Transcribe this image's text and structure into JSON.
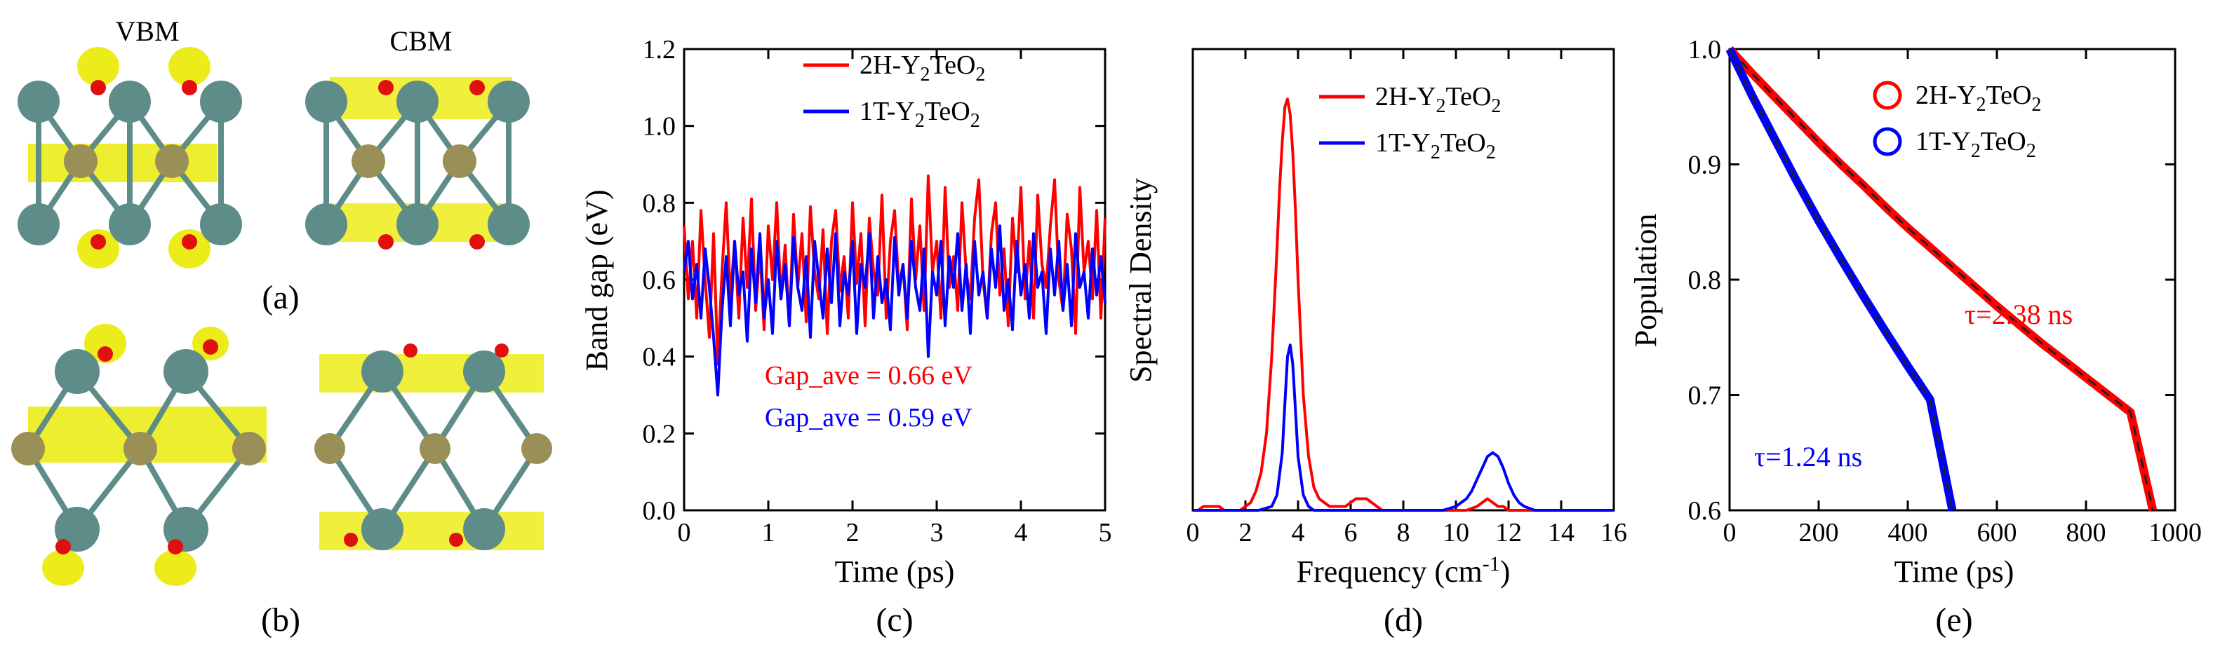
{
  "structures": {
    "vbm_label": "VBM",
    "cbm_label": "CBM",
    "label_a": "(a)",
    "label_b": "(b)"
  },
  "colors": {
    "red": "#ff0000",
    "blue": "#0000ff",
    "yellow": "#ecec1a",
    "atom_y": "#5e8c89",
    "atom_te": "#9a8f57",
    "atom_o": "#e01010"
  },
  "chart_data": [
    {
      "id": "c",
      "type": "line",
      "panel_label": "(c)",
      "xlabel": "Time (ps)",
      "ylabel": "Band gap (eV)",
      "xlim": [
        0,
        5
      ],
      "ylim": [
        0,
        1.2
      ],
      "xticks": [
        "0",
        "1",
        "2",
        "3",
        "4",
        "5"
      ],
      "yticks": [
        "0.0",
        "0.2",
        "0.4",
        "0.6",
        "0.8",
        "1.0",
        "1.2"
      ],
      "legend_position": "top-right",
      "series": [
        {
          "name_main": "2H-Y",
          "name_sub": "2",
          "name_tail": "TeO",
          "name_sub2": "2",
          "color": "#ff0000",
          "x": [
            0.0,
            0.05,
            0.1,
            0.15,
            0.2,
            0.25,
            0.3,
            0.35,
            0.4,
            0.45,
            0.5,
            0.55,
            0.6,
            0.65,
            0.7,
            0.75,
            0.8,
            0.85,
            0.9,
            0.95,
            1.0,
            1.05,
            1.1,
            1.15,
            1.2,
            1.25,
            1.3,
            1.35,
            1.4,
            1.45,
            1.5,
            1.55,
            1.6,
            1.65,
            1.7,
            1.75,
            1.8,
            1.85,
            1.9,
            1.95,
            2.0,
            2.05,
            2.1,
            2.15,
            2.2,
            2.25,
            2.3,
            2.35,
            2.4,
            2.45,
            2.5,
            2.55,
            2.6,
            2.65,
            2.7,
            2.75,
            2.8,
            2.85,
            2.9,
            2.95,
            3.0,
            3.05,
            3.1,
            3.15,
            3.2,
            3.25,
            3.3,
            3.35,
            3.4,
            3.45,
            3.5,
            3.55,
            3.6,
            3.65,
            3.7,
            3.75,
            3.8,
            3.85,
            3.9,
            3.95,
            4.0,
            4.05,
            4.1,
            4.15,
            4.2,
            4.25,
            4.3,
            4.35,
            4.4,
            4.45,
            4.5,
            4.55,
            4.6,
            4.65,
            4.7,
            4.75,
            4.8,
            4.85,
            4.9,
            4.95,
            5.0
          ],
          "values": [
            0.74,
            0.55,
            0.7,
            0.5,
            0.78,
            0.6,
            0.45,
            0.72,
            0.38,
            0.62,
            0.8,
            0.55,
            0.7,
            0.5,
            0.76,
            0.58,
            0.81,
            0.52,
            0.68,
            0.47,
            0.74,
            0.6,
            0.8,
            0.55,
            0.69,
            0.48,
            0.77,
            0.58,
            0.72,
            0.49,
            0.79,
            0.62,
            0.55,
            0.73,
            0.46,
            0.7,
            0.78,
            0.57,
            0.66,
            0.5,
            0.8,
            0.59,
            0.72,
            0.48,
            0.76,
            0.62,
            0.56,
            0.82,
            0.5,
            0.7,
            0.78,
            0.58,
            0.64,
            0.47,
            0.81,
            0.6,
            0.74,
            0.52,
            0.87,
            0.62,
            0.7,
            0.5,
            0.84,
            0.58,
            0.66,
            0.52,
            0.8,
            0.62,
            0.55,
            0.76,
            0.86,
            0.6,
            0.5,
            0.72,
            0.8,
            0.56,
            0.68,
            0.48,
            0.76,
            0.62,
            0.84,
            0.55,
            0.7,
            0.5,
            0.82,
            0.64,
            0.58,
            0.74,
            0.86,
            0.6,
            0.52,
            0.77,
            0.68,
            0.46,
            0.84,
            0.62,
            0.7,
            0.55,
            0.78,
            0.5,
            0.76
          ]
        },
        {
          "name_main": "1T-Y",
          "name_sub": "2",
          "name_tail": "TeO",
          "name_sub2": "2",
          "color": "#0000ff",
          "x": [
            0.0,
            0.05,
            0.1,
            0.15,
            0.2,
            0.25,
            0.3,
            0.35,
            0.4,
            0.45,
            0.5,
            0.55,
            0.6,
            0.65,
            0.7,
            0.75,
            0.8,
            0.85,
            0.9,
            0.95,
            1.0,
            1.05,
            1.1,
            1.15,
            1.2,
            1.25,
            1.3,
            1.35,
            1.4,
            1.45,
            1.5,
            1.55,
            1.6,
            1.65,
            1.7,
            1.75,
            1.8,
            1.85,
            1.9,
            1.95,
            2.0,
            2.05,
            2.1,
            2.15,
            2.2,
            2.25,
            2.3,
            2.35,
            2.4,
            2.45,
            2.5,
            2.55,
            2.6,
            2.65,
            2.7,
            2.75,
            2.8,
            2.85,
            2.9,
            2.95,
            3.0,
            3.05,
            3.1,
            3.15,
            3.2,
            3.25,
            3.3,
            3.35,
            3.4,
            3.45,
            3.5,
            3.55,
            3.6,
            3.65,
            3.7,
            3.75,
            3.8,
            3.85,
            3.9,
            3.95,
            4.0,
            4.05,
            4.1,
            4.15,
            4.2,
            4.25,
            4.3,
            4.35,
            4.4,
            4.45,
            4.5,
            4.55,
            4.6,
            4.65,
            4.7,
            4.75,
            4.8,
            4.85,
            4.9,
            4.95,
            5.0
          ],
          "values": [
            0.62,
            0.7,
            0.55,
            0.64,
            0.5,
            0.68,
            0.58,
            0.45,
            0.3,
            0.52,
            0.66,
            0.48,
            0.7,
            0.56,
            0.62,
            0.44,
            0.68,
            0.54,
            0.72,
            0.5,
            0.6,
            0.46,
            0.7,
            0.55,
            0.64,
            0.48,
            0.71,
            0.58,
            0.52,
            0.66,
            0.45,
            0.7,
            0.6,
            0.5,
            0.68,
            0.54,
            0.72,
            0.48,
            0.62,
            0.56,
            0.7,
            0.46,
            0.64,
            0.58,
            0.72,
            0.5,
            0.66,
            0.54,
            0.6,
            0.47,
            0.71,
            0.56,
            0.64,
            0.5,
            0.7,
            0.58,
            0.52,
            0.68,
            0.4,
            0.62,
            0.56,
            0.7,
            0.48,
            0.66,
            0.58,
            0.72,
            0.52,
            0.64,
            0.46,
            0.7,
            0.56,
            0.62,
            0.5,
            0.68,
            0.58,
            0.74,
            0.52,
            0.6,
            0.47,
            0.7,
            0.56,
            0.64,
            0.5,
            0.72,
            0.58,
            0.62,
            0.46,
            0.68,
            0.56,
            0.7,
            0.52,
            0.64,
            0.48,
            0.72,
            0.58,
            0.62,
            0.5,
            0.68,
            0.56,
            0.66,
            0.54
          ]
        }
      ],
      "annotations": [
        {
          "text": "Gap_ave = 0.66 eV",
          "color": "#ff0000"
        },
        {
          "text": "Gap_ave = 0.59 eV",
          "color": "#0000ff"
        }
      ]
    },
    {
      "id": "d",
      "type": "line",
      "panel_label": "(d)",
      "xlabel_main": "Frequency (cm",
      "xlabel_sup": "-1",
      "xlabel_tail": ")",
      "ylabel": "Spectral Density",
      "xlim": [
        0,
        16
      ],
      "ylim": [
        0,
        1.2
      ],
      "xticks": [
        "0",
        "2",
        "4",
        "6",
        "8",
        "10",
        "12",
        "14",
        "16"
      ],
      "legend_position": "top-right",
      "series": [
        {
          "name_main": "2H-Y",
          "name_sub": "2",
          "name_tail": "TeO",
          "name_sub2": "2",
          "color": "#ff0000",
          "x": [
            0.0,
            0.2,
            0.4,
            0.6,
            0.8,
            1.0,
            1.2,
            1.4,
            1.6,
            1.8,
            2.0,
            2.2,
            2.4,
            2.6,
            2.8,
            3.0,
            3.2,
            3.3,
            3.4,
            3.5,
            3.6,
            3.7,
            3.8,
            3.9,
            4.0,
            4.1,
            4.2,
            4.4,
            4.6,
            4.8,
            5.0,
            5.2,
            5.4,
            5.6,
            5.8,
            6.0,
            6.2,
            6.4,
            6.6,
            6.8,
            7.0,
            7.2,
            7.4,
            7.6,
            7.8,
            8.0,
            8.5,
            9.0,
            9.5,
            10.0,
            10.4,
            10.8,
            11.0,
            11.2,
            11.4,
            11.6,
            11.8,
            12.0,
            12.4,
            12.8,
            13.2,
            14.0,
            15.0,
            16.0
          ],
          "values": [
            0.0,
            0.0,
            0.01,
            0.01,
            0.01,
            0.01,
            0.0,
            0.0,
            0.0,
            0.0,
            0.01,
            0.02,
            0.05,
            0.1,
            0.2,
            0.4,
            0.68,
            0.84,
            0.96,
            1.05,
            1.07,
            1.03,
            0.93,
            0.78,
            0.6,
            0.45,
            0.3,
            0.14,
            0.06,
            0.03,
            0.02,
            0.01,
            0.01,
            0.01,
            0.01,
            0.02,
            0.03,
            0.03,
            0.03,
            0.02,
            0.01,
            0.0,
            0.0,
            0.0,
            0.0,
            0.0,
            0.0,
            0.0,
            0.0,
            0.0,
            0.0,
            0.01,
            0.02,
            0.03,
            0.02,
            0.01,
            0.01,
            0.0,
            0.0,
            0.0,
            0.0,
            0.0,
            0.0,
            0.0
          ]
        },
        {
          "name_main": "1T-Y",
          "name_sub": "2",
          "name_tail": "TeO",
          "name_sub2": "2",
          "color": "#0000ff",
          "x": [
            0.0,
            0.5,
            1.0,
            1.5,
            2.0,
            2.5,
            3.0,
            3.2,
            3.4,
            3.5,
            3.6,
            3.7,
            3.8,
            3.9,
            4.0,
            4.2,
            4.4,
            4.6,
            5.0,
            6.0,
            7.0,
            8.0,
            9.0,
            9.5,
            10.0,
            10.4,
            10.6,
            10.8,
            11.0,
            11.2,
            11.4,
            11.6,
            11.8,
            12.0,
            12.2,
            12.4,
            12.6,
            13.0,
            13.5,
            14.0,
            15.0,
            16.0
          ],
          "values": [
            0.0,
            0.0,
            0.0,
            0.0,
            0.0,
            0.0,
            0.01,
            0.04,
            0.15,
            0.28,
            0.4,
            0.43,
            0.38,
            0.26,
            0.14,
            0.04,
            0.01,
            0.0,
            0.0,
            0.0,
            0.0,
            0.0,
            0.0,
            0.0,
            0.01,
            0.03,
            0.05,
            0.08,
            0.11,
            0.14,
            0.15,
            0.14,
            0.11,
            0.07,
            0.04,
            0.02,
            0.01,
            0.0,
            0.0,
            0.0,
            0.0,
            0.0
          ]
        }
      ]
    },
    {
      "id": "e",
      "type": "line",
      "panel_label": "(e)",
      "xlabel": "Time (ps)",
      "ylabel": "Population",
      "xlim": [
        0,
        1000
      ],
      "ylim": [
        0.6,
        1.0
      ],
      "xticks": [
        "0",
        "200",
        "400",
        "600",
        "800",
        "1000"
      ],
      "yticks": [
        "0.6",
        "0.7",
        "0.8",
        "0.9",
        "1.0"
      ],
      "legend_position": "top-right",
      "series": [
        {
          "name_main": "2H-Y",
          "name_sub": "2",
          "name_tail": "TeO",
          "name_sub2": "2",
          "color": "#ff0000",
          "x": [
            0,
            50,
            100,
            150,
            200,
            250,
            300,
            350,
            400,
            450,
            500,
            550,
            600,
            650,
            700,
            750,
            800,
            850,
            900,
            950
          ],
          "values": [
            1.0,
            0.979,
            0.959,
            0.939,
            0.919,
            0.9,
            0.882,
            0.863,
            0.845,
            0.828,
            0.811,
            0.794,
            0.777,
            0.761,
            0.745,
            0.73,
            0.715,
            0.7,
            0.685,
            0.6
          ],
          "tau_label": "τ=2.38 ns"
        },
        {
          "name_main": "1T-Y",
          "name_sub": "2",
          "name_tail": "TeO",
          "name_sub2": "2",
          "color": "#0000ff",
          "x": [
            0,
            50,
            100,
            150,
            200,
            250,
            300,
            350,
            400,
            450,
            500
          ],
          "values": [
            1.0,
            0.96,
            0.923,
            0.886,
            0.851,
            0.818,
            0.786,
            0.755,
            0.725,
            0.696,
            0.6
          ],
          "tau_label": "τ=1.24 ns"
        }
      ]
    }
  ]
}
